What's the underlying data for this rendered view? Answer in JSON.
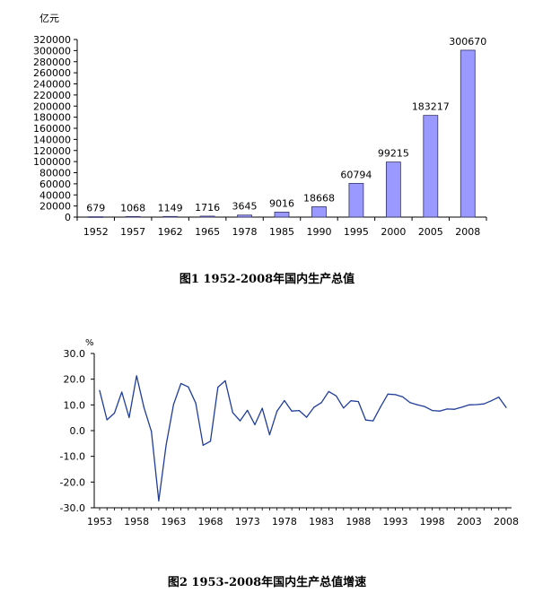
{
  "chart_data": [
    {
      "type": "bar",
      "title": "图1  1952-2008年国内生产总值",
      "ylabel": "亿元",
      "categories": [
        "1952",
        "1957",
        "1962",
        "1965",
        "1978",
        "1985",
        "1990",
        "1995",
        "2000",
        "2005",
        "2008"
      ],
      "values": [
        679,
        1068,
        1149,
        1716,
        3645,
        9016,
        18668,
        60794,
        99215,
        183217,
        300670
      ],
      "data_labels": [
        "679",
        "1068",
        "1149",
        "1716",
        "3645",
        "9016",
        "18668",
        "60794",
        "99215",
        "183217",
        "300670"
      ],
      "ylim": [
        0,
        320000
      ],
      "yticks": [
        "0",
        "20000",
        "40000",
        "60000",
        "80000",
        "100000",
        "120000",
        "140000",
        "160000",
        "180000",
        "200000",
        "220000",
        "240000",
        "260000",
        "280000",
        "300000",
        "320000"
      ],
      "grid": false,
      "bar_color": "#9999ff"
    },
    {
      "type": "line",
      "title": "图2  1953-2008年国内生产总值增速",
      "ylabel": "%",
      "x": [
        1953,
        1954,
        1955,
        1956,
        1957,
        1958,
        1959,
        1960,
        1961,
        1962,
        1963,
        1964,
        1965,
        1966,
        1967,
        1968,
        1969,
        1970,
        1971,
        1972,
        1973,
        1974,
        1975,
        1976,
        1977,
        1978,
        1979,
        1980,
        1981,
        1982,
        1983,
        1984,
        1985,
        1986,
        1987,
        1988,
        1989,
        1990,
        1991,
        1992,
        1993,
        1994,
        1995,
        1996,
        1997,
        1998,
        1999,
        2000,
        2001,
        2002,
        2003,
        2004,
        2005,
        2006,
        2007,
        2008
      ],
      "values": [
        15.6,
        4.2,
        6.8,
        15.0,
        5.1,
        21.3,
        9.0,
        -0.3,
        -27.3,
        -5.6,
        10.2,
        18.3,
        17.0,
        10.7,
        -5.7,
        -4.1,
        16.9,
        19.4,
        7.0,
        3.8,
        7.9,
        2.3,
        8.7,
        -1.6,
        7.6,
        11.7,
        7.6,
        7.8,
        5.2,
        9.1,
        10.9,
        15.2,
        13.5,
        8.8,
        11.6,
        11.3,
        4.1,
        3.8,
        9.2,
        14.2,
        14.0,
        13.1,
        10.9,
        10.0,
        9.3,
        7.8,
        7.6,
        8.4,
        8.3,
        9.1,
        10.0,
        10.1,
        10.4,
        11.6,
        13.0,
        9.0
      ],
      "xticks": [
        "1953",
        "1958",
        "1963",
        "1968",
        "1973",
        "1978",
        "1983",
        "1988",
        "1993",
        "1998",
        "2003",
        "2008"
      ],
      "yticks": [
        "-30.0",
        "-20.0",
        "-10.0",
        "0.0",
        "10.0",
        "20.0",
        "30.0"
      ],
      "ylim": [
        -30,
        30
      ],
      "grid": false,
      "line_color": "#1f3d99"
    }
  ]
}
